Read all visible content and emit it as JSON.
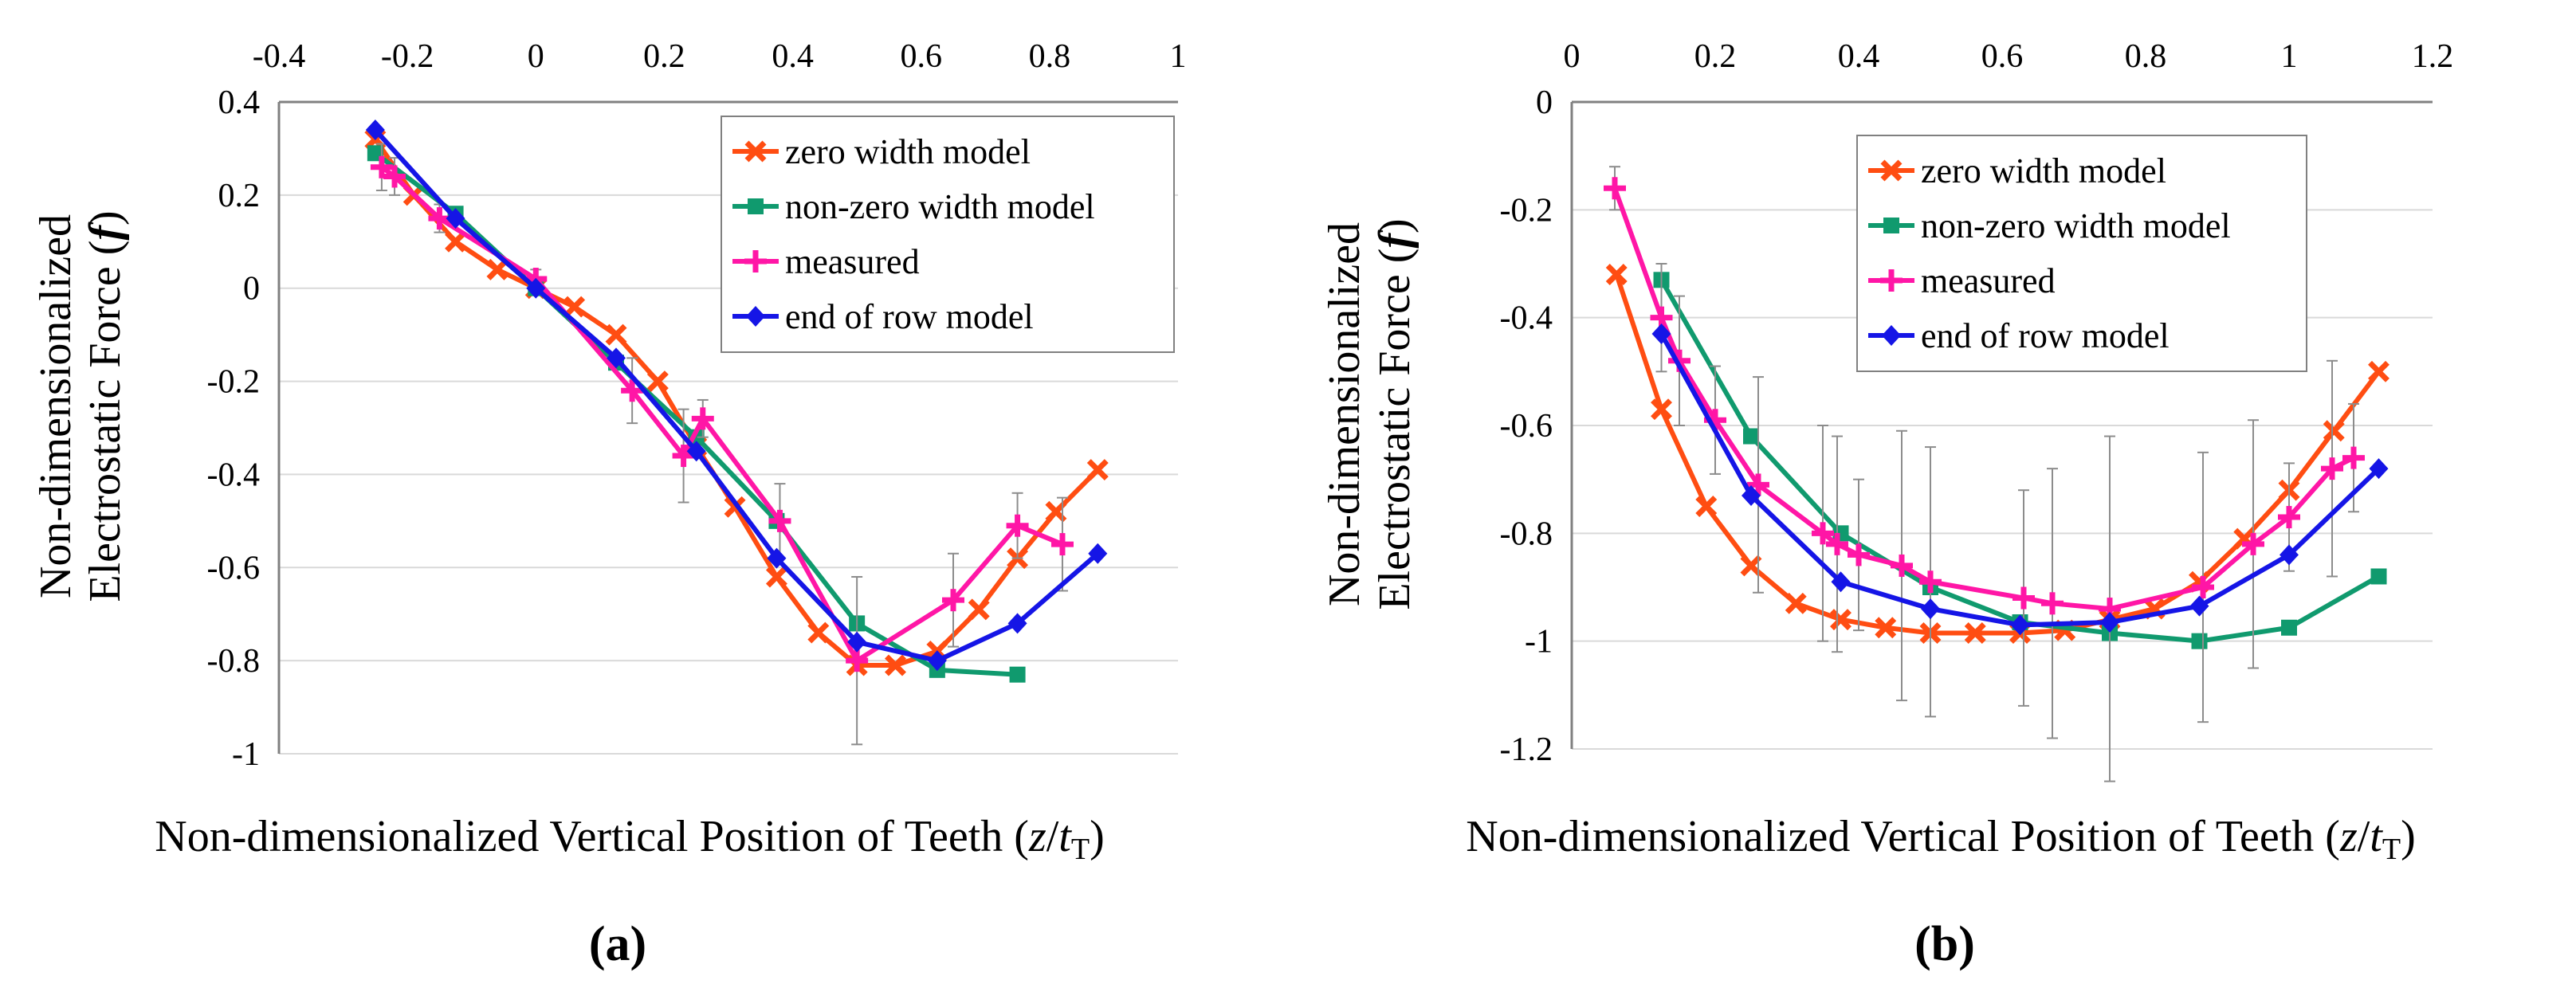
{
  "figure": {
    "panels": [
      {
        "panel_label": "a",
        "ylabel_line1": "Non-dimensionalized",
        "ylabel_line2": "Electrostatic Force",
        "ylabel_symbol": "f",
        "xlabel_main": "Non-dimensionalized Vertical Position of Teeth",
        "xlabel_var": "z",
        "xlabel_sub": "T"
      },
      {
        "panel_label": "b",
        "ylabel_line1": "Non-dimensionalized",
        "ylabel_line2": "Electrostatic Force",
        "ylabel_symbol": "f",
        "xlabel_main": "Non-dimensionalized Vertical Position of Teeth",
        "xlabel_var": "z",
        "xlabel_sub": "T"
      }
    ]
  },
  "chart_data": [
    {
      "type": "line",
      "xlim": [
        -0.4,
        1.0
      ],
      "ylim": [
        -1.0,
        0.4
      ],
      "x_ticks": [
        "-0.4",
        "-0.2",
        "0",
        "0.2",
        "0.4",
        "0.6",
        "0.8",
        "1"
      ],
      "y_ticks": [
        "0.4",
        "0.2",
        "0",
        "-0.2",
        "-0.4",
        "-0.6",
        "-0.8",
        "-1"
      ],
      "x_axis_position": "top",
      "grid": "horizontal",
      "legend_position": "top-right",
      "series": [
        {
          "name": "zero width model",
          "color": "#ff4d12",
          "marker": "x",
          "x": [
            -0.25,
            -0.19,
            -0.125,
            -0.06,
            0.0,
            0.06,
            0.125,
            0.19,
            0.25,
            0.31,
            0.375,
            0.44,
            0.5,
            0.56,
            0.625,
            0.69,
            0.75,
            0.81,
            0.875
          ],
          "y": [
            0.32,
            0.2,
            0.1,
            0.04,
            0.0,
            -0.04,
            -0.1,
            -0.2,
            -0.34,
            -0.47,
            -0.62,
            -0.74,
            -0.81,
            -0.81,
            -0.78,
            -0.69,
            -0.58,
            -0.48,
            -0.39
          ]
        },
        {
          "name": "non-zero width model",
          "color": "#109a6e",
          "marker": "square",
          "x": [
            -0.25,
            -0.125,
            0.0,
            0.125,
            0.25,
            0.375,
            0.5,
            0.625,
            0.75
          ],
          "y": [
            0.29,
            0.16,
            0.0,
            -0.16,
            -0.32,
            -0.5,
            -0.72,
            -0.82,
            -0.83
          ]
        },
        {
          "name": "measured",
          "color": "#ff16a6",
          "marker": "plus",
          "x": [
            -0.24,
            -0.22,
            -0.15,
            0.0,
            0.15,
            0.23,
            0.26,
            0.38,
            0.5,
            0.65,
            0.75,
            0.82
          ],
          "y": [
            0.26,
            0.24,
            0.15,
            0.02,
            -0.22,
            -0.36,
            -0.28,
            -0.5,
            -0.8,
            -0.67,
            -0.51,
            -0.55
          ],
          "errors": [
            0.05,
            0.04,
            0.03,
            0.02,
            0.07,
            0.1,
            0.04,
            0.08,
            0.18,
            0.1,
            0.07,
            0.1
          ]
        },
        {
          "name": "end of row model",
          "color": "#1515e6",
          "marker": "diamond",
          "x": [
            -0.25,
            -0.125,
            0.0,
            0.125,
            0.25,
            0.375,
            0.5,
            0.625,
            0.75,
            0.875
          ],
          "y": [
            0.34,
            0.15,
            0.0,
            -0.15,
            -0.35,
            -0.58,
            -0.76,
            -0.8,
            -0.72,
            -0.57
          ]
        }
      ]
    },
    {
      "type": "line",
      "xlim": [
        0.0,
        1.2
      ],
      "ylim": [
        -1.2,
        0.0
      ],
      "x_ticks": [
        "0",
        "0.2",
        "0.4",
        "0.6",
        "0.8",
        "1",
        "1.2"
      ],
      "y_ticks": [
        "0",
        "-0.2",
        "-0.4",
        "-0.6",
        "-0.8",
        "-1",
        "-1.2"
      ],
      "x_axis_position": "top",
      "grid": "horizontal",
      "legend_position": "top-center",
      "series": [
        {
          "name": "zero width model",
          "color": "#ff4d12",
          "marker": "x",
          "x": [
            0.0625,
            0.125,
            0.1875,
            0.25,
            0.3125,
            0.375,
            0.4375,
            0.5,
            0.5625,
            0.625,
            0.6875,
            0.75,
            0.8125,
            0.875,
            0.9375,
            1.0,
            1.0625,
            1.125
          ],
          "y": [
            -0.32,
            -0.57,
            -0.75,
            -0.86,
            -0.93,
            -0.96,
            -0.975,
            -0.985,
            -0.985,
            -0.985,
            -0.98,
            -0.96,
            -0.94,
            -0.89,
            -0.81,
            -0.72,
            -0.61,
            -0.5
          ]
        },
        {
          "name": "non-zero width model",
          "color": "#109a6e",
          "marker": "square",
          "x": [
            0.125,
            0.25,
            0.375,
            0.5,
            0.625,
            0.75,
            0.875,
            1.0,
            1.125
          ],
          "y": [
            -0.33,
            -0.62,
            -0.8,
            -0.9,
            -0.965,
            -0.985,
            -1.0,
            -0.975,
            -0.88
          ]
        },
        {
          "name": "measured",
          "color": "#ff16a6",
          "marker": "plus",
          "x": [
            0.06,
            0.125,
            0.15,
            0.2,
            0.26,
            0.35,
            0.37,
            0.4,
            0.46,
            0.5,
            0.63,
            0.67,
            0.75,
            0.88,
            0.95,
            1.0,
            1.06,
            1.09
          ],
          "y": [
            -0.16,
            -0.4,
            -0.48,
            -0.59,
            -0.71,
            -0.8,
            -0.82,
            -0.84,
            -0.86,
            -0.89,
            -0.92,
            -0.93,
            -0.94,
            -0.9,
            -0.82,
            -0.77,
            -0.68,
            -0.66
          ],
          "errors": [
            0.04,
            0.1,
            0.12,
            0.1,
            0.2,
            0.2,
            0.2,
            0.14,
            0.25,
            0.25,
            0.2,
            0.25,
            0.32,
            0.25,
            0.23,
            0.1,
            0.2,
            0.1
          ]
        },
        {
          "name": "end of row model",
          "color": "#1515e6",
          "marker": "diamond",
          "x": [
            0.125,
            0.25,
            0.375,
            0.5,
            0.625,
            0.75,
            0.875,
            1.0,
            1.125
          ],
          "y": [
            -0.43,
            -0.73,
            -0.89,
            -0.94,
            -0.97,
            -0.965,
            -0.935,
            -0.84,
            -0.68
          ]
        }
      ]
    }
  ]
}
